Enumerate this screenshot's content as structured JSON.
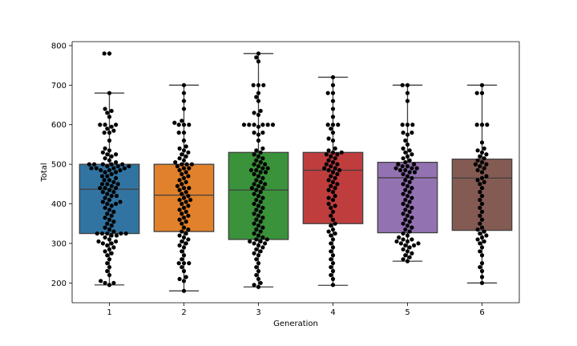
{
  "chart_data": {
    "type": "box",
    "overlay": "swarm",
    "xlabel": "Generation",
    "ylabel": "Total",
    "categories": [
      "1",
      "2",
      "3",
      "4",
      "5",
      "6"
    ],
    "ylim": [
      150,
      810
    ],
    "yticks": [
      200,
      300,
      400,
      500,
      600,
      700,
      800
    ],
    "grid": false,
    "colors": [
      "#3274a1",
      "#e1812c",
      "#3a923a",
      "#c03d3e",
      "#9372b2",
      "#845b53"
    ],
    "point_color": "#000000",
    "boxes": [
      {
        "category": "1",
        "whisker_low": 195,
        "q1": 325,
        "median": 437,
        "q3": 500,
        "whisker_high": 680,
        "outliers": [
          780,
          780
        ]
      },
      {
        "category": "2",
        "whisker_low": 180,
        "q1": 330,
        "median": 422,
        "q3": 500,
        "whisker_high": 700,
        "outliers": []
      },
      {
        "category": "3",
        "whisker_low": 190,
        "q1": 310,
        "median": 435,
        "q3": 530,
        "whisker_high": 780,
        "outliers": []
      },
      {
        "category": "4",
        "whisker_low": 194,
        "q1": 350,
        "median": 485,
        "q3": 530,
        "whisker_high": 720,
        "outliers": []
      },
      {
        "category": "5",
        "whisker_low": 255,
        "q1": 327,
        "median": 466,
        "q3": 505,
        "whisker_high": 700,
        "outliers": []
      },
      {
        "category": "6",
        "whisker_low": 200,
        "q1": 333,
        "median": 465,
        "q3": 513,
        "whisker_high": 700,
        "outliers": []
      }
    ],
    "points": [
      [
        780,
        780,
        680,
        640,
        635,
        630,
        620,
        600,
        600,
        600,
        595,
        590,
        585,
        580,
        580,
        560,
        540,
        535,
        530,
        525,
        525,
        520,
        515,
        510,
        505,
        500,
        500,
        500,
        500,
        500,
        495,
        495,
        495,
        490,
        490,
        490,
        490,
        485,
        485,
        485,
        480,
        480,
        475,
        470,
        470,
        465,
        460,
        460,
        455,
        450,
        450,
        450,
        445,
        440,
        440,
        440,
        435,
        430,
        430,
        425,
        420,
        420,
        415,
        410,
        405,
        405,
        400,
        400,
        395,
        390,
        385,
        380,
        375,
        370,
        365,
        360,
        355,
        350,
        345,
        340,
        335,
        330,
        325,
        325,
        325,
        325,
        325,
        320,
        320,
        315,
        310,
        305,
        305,
        300,
        300,
        295,
        290,
        285,
        280,
        275,
        270,
        260,
        250,
        240,
        230,
        220,
        205,
        200,
        200,
        195
      ],
      [
        700,
        680,
        660,
        640,
        610,
        605,
        600,
        600,
        600,
        580,
        580,
        560,
        545,
        540,
        535,
        530,
        525,
        520,
        515,
        510,
        505,
        500,
        500,
        500,
        495,
        490,
        490,
        485,
        480,
        475,
        470,
        465,
        460,
        455,
        450,
        445,
        440,
        440,
        435,
        430,
        425,
        420,
        415,
        410,
        410,
        405,
        400,
        395,
        390,
        385,
        380,
        375,
        370,
        365,
        360,
        355,
        350,
        340,
        335,
        330,
        325,
        320,
        315,
        310,
        305,
        300,
        295,
        290,
        280,
        270,
        260,
        250,
        250,
        250,
        240,
        230,
        215,
        210,
        205,
        180
      ],
      [
        780,
        770,
        760,
        700,
        700,
        700,
        680,
        670,
        660,
        635,
        630,
        625,
        600,
        600,
        600,
        600,
        600,
        600,
        595,
        580,
        580,
        575,
        560,
        540,
        535,
        530,
        525,
        520,
        515,
        510,
        505,
        500,
        500,
        495,
        490,
        490,
        485,
        485,
        480,
        480,
        475,
        470,
        465,
        460,
        455,
        450,
        450,
        445,
        440,
        440,
        435,
        430,
        425,
        420,
        415,
        410,
        405,
        400,
        395,
        390,
        385,
        380,
        375,
        370,
        365,
        360,
        355,
        350,
        345,
        340,
        335,
        330,
        325,
        320,
        315,
        310,
        310,
        305,
        305,
        300,
        300,
        295,
        290,
        285,
        280,
        275,
        270,
        260,
        250,
        240,
        230,
        220,
        210,
        200,
        195,
        190
      ],
      [
        720,
        700,
        680,
        680,
        660,
        640,
        620,
        600,
        600,
        600,
        590,
        580,
        565,
        560,
        540,
        535,
        530,
        530,
        525,
        525,
        520,
        515,
        510,
        505,
        500,
        500,
        495,
        490,
        490,
        485,
        485,
        480,
        475,
        470,
        465,
        460,
        455,
        450,
        445,
        440,
        435,
        430,
        420,
        415,
        410,
        400,
        395,
        390,
        380,
        370,
        360,
        350,
        345,
        335,
        330,
        325,
        320,
        310,
        300,
        290,
        280,
        270,
        260,
        250,
        240,
        230,
        220,
        210,
        195
      ],
      [
        700,
        700,
        680,
        660,
        600,
        600,
        600,
        580,
        580,
        575,
        560,
        550,
        540,
        535,
        530,
        525,
        520,
        515,
        510,
        505,
        500,
        500,
        495,
        495,
        490,
        490,
        490,
        485,
        485,
        480,
        480,
        475,
        470,
        465,
        460,
        455,
        450,
        445,
        440,
        435,
        430,
        425,
        420,
        415,
        410,
        405,
        400,
        395,
        390,
        385,
        380,
        375,
        370,
        365,
        360,
        355,
        350,
        345,
        340,
        335,
        330,
        325,
        320,
        315,
        310,
        310,
        305,
        305,
        300,
        300,
        295,
        295,
        290,
        285,
        280,
        275,
        270,
        265,
        260,
        255
      ],
      [
        700,
        680,
        680,
        600,
        600,
        600,
        555,
        540,
        535,
        530,
        525,
        520,
        515,
        510,
        505,
        500,
        500,
        495,
        490,
        485,
        480,
        470,
        465,
        460,
        455,
        450,
        440,
        430,
        420,
        410,
        400,
        390,
        380,
        370,
        360,
        350,
        340,
        335,
        330,
        325,
        320,
        315,
        310,
        305,
        300,
        290,
        280,
        270,
        250,
        240,
        230,
        215,
        200
      ]
    ]
  }
}
